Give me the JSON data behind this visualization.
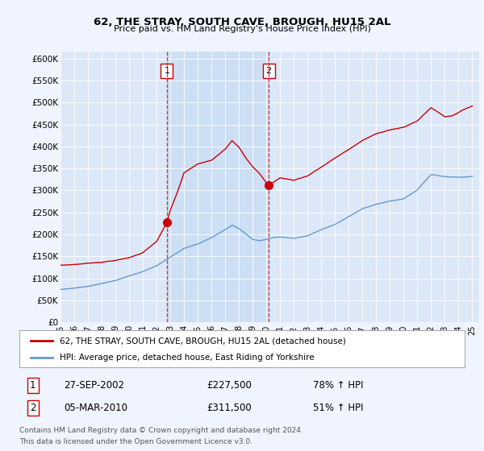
{
  "title": "62, THE STRAY, SOUTH CAVE, BROUGH, HU15 2AL",
  "subtitle": "Price paid vs. HM Land Registry's House Price Index (HPI)",
  "background_color": "#f0f4ff",
  "plot_bg_color": "#dce8f8",
  "highlight_bg_color": "#ccdff5",
  "ylabel_ticks": [
    "£0",
    "£50K",
    "£100K",
    "£150K",
    "£200K",
    "£250K",
    "£300K",
    "£350K",
    "£400K",
    "£450K",
    "£500K",
    "£550K",
    "£600K"
  ],
  "ytick_values": [
    0,
    50000,
    100000,
    150000,
    200000,
    250000,
    300000,
    350000,
    400000,
    450000,
    500000,
    550000,
    600000
  ],
  "ylim": [
    0,
    615000
  ],
  "xlim_start": 1995.0,
  "xlim_end": 2025.5,
  "sale1_x": 2002.75,
  "sale1_y": 227500,
  "sale2_x": 2010.17,
  "sale2_y": 311500,
  "legend_line1": "62, THE STRAY, SOUTH CAVE, BROUGH, HU15 2AL (detached house)",
  "legend_line2": "HPI: Average price, detached house, East Riding of Yorkshire",
  "footnote1": "Contains HM Land Registry data © Crown copyright and database right 2024.",
  "footnote2": "This data is licensed under the Open Government Licence v3.0.",
  "red_color": "#cc0000",
  "blue_color": "#6699cc",
  "vline_color": "#cc3333"
}
